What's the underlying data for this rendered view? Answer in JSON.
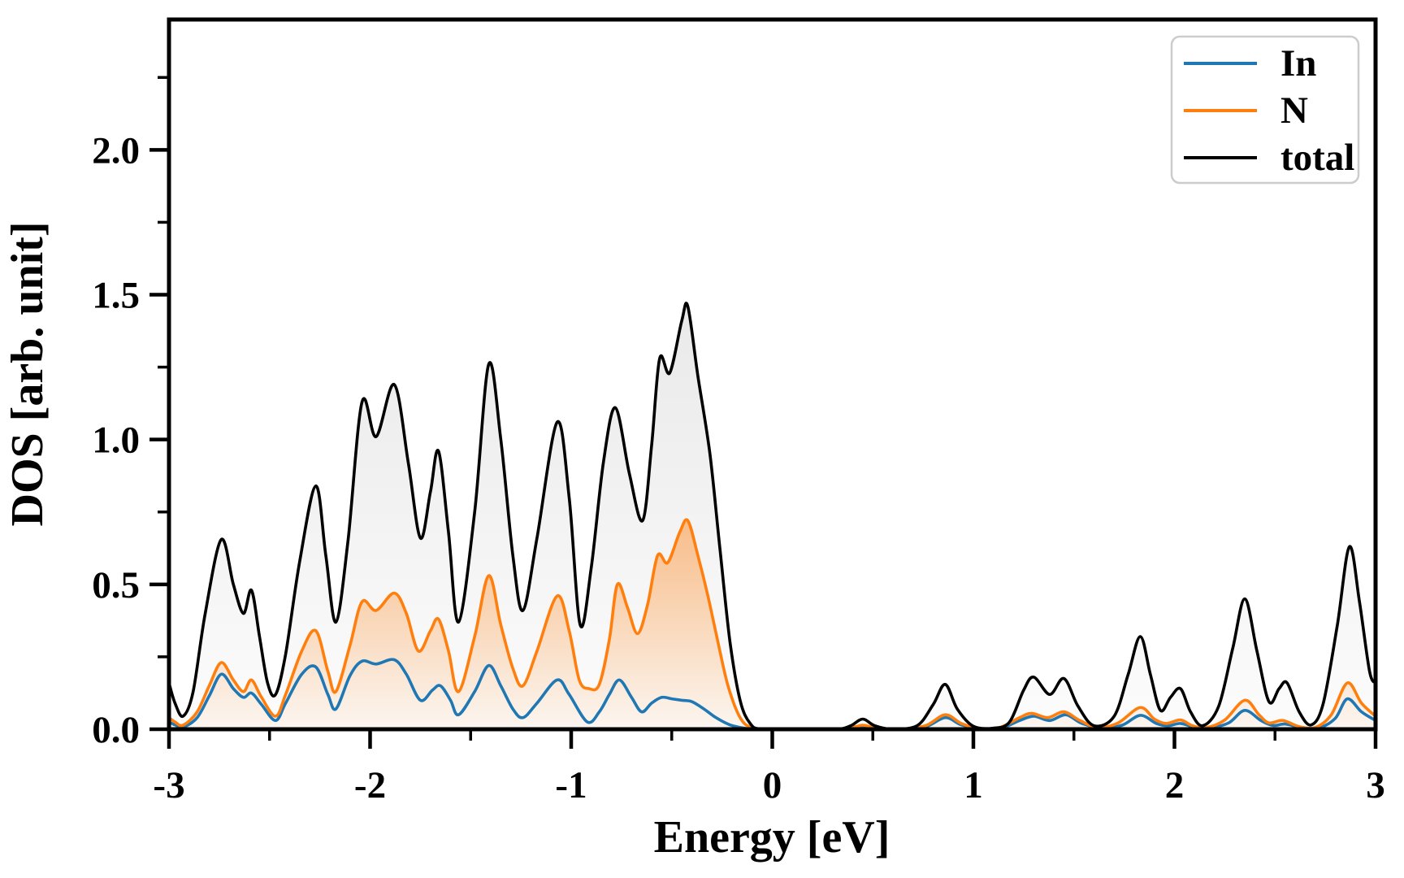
{
  "figure": {
    "background": "#ffffff"
  },
  "chart_data": {
    "type": "line",
    "title": "",
    "xlabel": "Energy [eV]",
    "ylabel": "DOS [arb. unit]",
    "xlim": [
      -3,
      3
    ],
    "ylim": [
      0,
      2.45
    ],
    "grid": false,
    "legend_position": "upper right",
    "x_ticks": [
      {
        "v": -3,
        "label": "-3"
      },
      {
        "v": -2,
        "label": "-2"
      },
      {
        "v": -1,
        "label": "-1"
      },
      {
        "v": 0,
        "label": "0"
      },
      {
        "v": 1,
        "label": "1"
      },
      {
        "v": 2,
        "label": "2"
      },
      {
        "v": 3,
        "label": "3"
      }
    ],
    "x_minor_ticks": [
      -2.5,
      -1.5,
      -0.5,
      0.5,
      1.5,
      2.5
    ],
    "y_ticks": [
      {
        "v": 0,
        "label": "0.0"
      },
      {
        "v": 0.5,
        "label": "0.5"
      },
      {
        "v": 1,
        "label": "1.0"
      },
      {
        "v": 1.5,
        "label": "1.5"
      },
      {
        "v": 2,
        "label": "2.0"
      }
    ],
    "y_minor_ticks": [
      0.25,
      0.75,
      1.25,
      1.75,
      2.25
    ],
    "series": [
      {
        "name": "In",
        "color": "#1f77b4",
        "fill": null,
        "points": [
          [
            -3,
            0.025
          ],
          [
            -2.97,
            0.015
          ],
          [
            -2.93,
            0.007
          ],
          [
            -2.86,
            0.04
          ],
          [
            -2.8,
            0.115
          ],
          [
            -2.74,
            0.19
          ],
          [
            -2.68,
            0.14
          ],
          [
            -2.63,
            0.11
          ],
          [
            -2.59,
            0.125
          ],
          [
            -2.54,
            0.085
          ],
          [
            -2.47,
            0.03
          ],
          [
            -2.42,
            0.09
          ],
          [
            -2.34,
            0.19
          ],
          [
            -2.27,
            0.215
          ],
          [
            -2.21,
            0.12
          ],
          [
            -2.17,
            0.07
          ],
          [
            -2.1,
            0.185
          ],
          [
            -2.04,
            0.235
          ],
          [
            -1.97,
            0.225
          ],
          [
            -1.88,
            0.24
          ],
          [
            -1.82,
            0.19
          ],
          [
            -1.75,
            0.1
          ],
          [
            -1.69,
            0.135
          ],
          [
            -1.65,
            0.15
          ],
          [
            -1.6,
            0.1
          ],
          [
            -1.56,
            0.05
          ],
          [
            -1.48,
            0.13
          ],
          [
            -1.41,
            0.22
          ],
          [
            -1.35,
            0.15
          ],
          [
            -1.29,
            0.07
          ],
          [
            -1.24,
            0.04
          ],
          [
            -1.17,
            0.09
          ],
          [
            -1.07,
            0.17
          ],
          [
            -1.01,
            0.12
          ],
          [
            -0.92,
            0.025
          ],
          [
            -0.86,
            0.06
          ],
          [
            -0.81,
            0.12
          ],
          [
            -0.76,
            0.17
          ],
          [
            -0.7,
            0.11
          ],
          [
            -0.65,
            0.06
          ],
          [
            -0.6,
            0.09
          ],
          [
            -0.55,
            0.11
          ],
          [
            -0.5,
            0.105
          ],
          [
            -0.45,
            0.1
          ],
          [
            -0.4,
            0.095
          ],
          [
            -0.34,
            0.07
          ],
          [
            -0.28,
            0.04
          ],
          [
            -0.21,
            0.015
          ],
          [
            -0.14,
            0.004
          ],
          [
            -0.06,
            0
          ],
          [
            0.32,
            0
          ],
          [
            0.41,
            0.008
          ],
          [
            0.47,
            0.004
          ],
          [
            0.62,
            0
          ],
          [
            0.76,
            0.008
          ],
          [
            0.86,
            0.04
          ],
          [
            0.94,
            0.015
          ],
          [
            1.04,
            0.002
          ],
          [
            1.14,
            0.004
          ],
          [
            1.23,
            0.03
          ],
          [
            1.3,
            0.045
          ],
          [
            1.38,
            0.03
          ],
          [
            1.46,
            0.05
          ],
          [
            1.54,
            0.02
          ],
          [
            1.64,
            0.005
          ],
          [
            1.74,
            0.014
          ],
          [
            1.83,
            0.048
          ],
          [
            1.91,
            0.02
          ],
          [
            1.97,
            0.012
          ],
          [
            2.03,
            0.02
          ],
          [
            2.1,
            0.007
          ],
          [
            2.18,
            0.005
          ],
          [
            2.27,
            0.022
          ],
          [
            2.35,
            0.065
          ],
          [
            2.43,
            0.03
          ],
          [
            2.49,
            0.013
          ],
          [
            2.55,
            0.018
          ],
          [
            2.63,
            0.006
          ],
          [
            2.72,
            0.005
          ],
          [
            2.8,
            0.038
          ],
          [
            2.86,
            0.105
          ],
          [
            2.93,
            0.06
          ],
          [
            3,
            0.03
          ]
        ]
      },
      {
        "name": "N",
        "color": "#ff7f0e",
        "fill": {
          "top_opacity": 0.46,
          "bottom_opacity": 0.05
        },
        "points": [
          [
            -3,
            0.04
          ],
          [
            -2.97,
            0.025
          ],
          [
            -2.93,
            0.014
          ],
          [
            -2.86,
            0.06
          ],
          [
            -2.8,
            0.15
          ],
          [
            -2.74,
            0.23
          ],
          [
            -2.68,
            0.17
          ],
          [
            -2.63,
            0.13
          ],
          [
            -2.59,
            0.17
          ],
          [
            -2.54,
            0.11
          ],
          [
            -2.47,
            0.045
          ],
          [
            -2.42,
            0.12
          ],
          [
            -2.34,
            0.27
          ],
          [
            -2.27,
            0.34
          ],
          [
            -2.21,
            0.2
          ],
          [
            -2.17,
            0.13
          ],
          [
            -2.1,
            0.29
          ],
          [
            -2.04,
            0.44
          ],
          [
            -1.97,
            0.41
          ],
          [
            -1.88,
            0.47
          ],
          [
            -1.82,
            0.4
          ],
          [
            -1.76,
            0.27
          ],
          [
            -1.7,
            0.34
          ],
          [
            -1.66,
            0.38
          ],
          [
            -1.61,
            0.27
          ],
          [
            -1.56,
            0.13
          ],
          [
            -1.48,
            0.32
          ],
          [
            -1.41,
            0.53
          ],
          [
            -1.35,
            0.36
          ],
          [
            -1.29,
            0.21
          ],
          [
            -1.24,
            0.15
          ],
          [
            -1.17,
            0.27
          ],
          [
            -1.07,
            0.46
          ],
          [
            -1.01,
            0.34
          ],
          [
            -0.96,
            0.17
          ],
          [
            -0.91,
            0.14
          ],
          [
            -0.86,
            0.155
          ],
          [
            -0.81,
            0.31
          ],
          [
            -0.77,
            0.5
          ],
          [
            -0.72,
            0.42
          ],
          [
            -0.67,
            0.33
          ],
          [
            -0.62,
            0.43
          ],
          [
            -0.57,
            0.6
          ],
          [
            -0.52,
            0.575
          ],
          [
            -0.46,
            0.68
          ],
          [
            -0.42,
            0.72
          ],
          [
            -0.37,
            0.6
          ],
          [
            -0.32,
            0.46
          ],
          [
            -0.27,
            0.3
          ],
          [
            -0.22,
            0.15
          ],
          [
            -0.16,
            0.04
          ],
          [
            -0.1,
            0.005
          ],
          [
            0,
            0
          ],
          [
            0.32,
            0
          ],
          [
            0.4,
            0.006
          ],
          [
            0.45,
            0.014
          ],
          [
            0.51,
            0.006
          ],
          [
            0.62,
            0
          ],
          [
            0.76,
            0.012
          ],
          [
            0.86,
            0.05
          ],
          [
            0.94,
            0.02
          ],
          [
            1.03,
            0.003
          ],
          [
            1.13,
            0.006
          ],
          [
            1.23,
            0.04
          ],
          [
            1.29,
            0.055
          ],
          [
            1.37,
            0.04
          ],
          [
            1.45,
            0.06
          ],
          [
            1.53,
            0.03
          ],
          [
            1.62,
            0.006
          ],
          [
            1.72,
            0.022
          ],
          [
            1.83,
            0.075
          ],
          [
            1.9,
            0.035
          ],
          [
            1.96,
            0.02
          ],
          [
            2.03,
            0.032
          ],
          [
            2.09,
            0.012
          ],
          [
            2.16,
            0.006
          ],
          [
            2.25,
            0.032
          ],
          [
            2.35,
            0.1
          ],
          [
            2.42,
            0.05
          ],
          [
            2.47,
            0.022
          ],
          [
            2.54,
            0.03
          ],
          [
            2.62,
            0.009
          ],
          [
            2.7,
            0.006
          ],
          [
            2.78,
            0.05
          ],
          [
            2.86,
            0.16
          ],
          [
            2.93,
            0.09
          ],
          [
            3,
            0.045
          ]
        ]
      },
      {
        "name": "total",
        "color": "#000000",
        "fill": {
          "top_opacity": 0.085,
          "bottom_opacity": 0.012
        },
        "points": [
          [
            -3,
            0.16
          ],
          [
            -2.97,
            0.09
          ],
          [
            -2.93,
            0.045
          ],
          [
            -2.88,
            0.13
          ],
          [
            -2.82,
            0.4
          ],
          [
            -2.74,
            0.655
          ],
          [
            -2.68,
            0.5
          ],
          [
            -2.63,
            0.4
          ],
          [
            -2.59,
            0.48
          ],
          [
            -2.55,
            0.32
          ],
          [
            -2.51,
            0.16
          ],
          [
            -2.47,
            0.12
          ],
          [
            -2.42,
            0.26
          ],
          [
            -2.35,
            0.58
          ],
          [
            -2.27,
            0.84
          ],
          [
            -2.22,
            0.6
          ],
          [
            -2.17,
            0.37
          ],
          [
            -2.11,
            0.65
          ],
          [
            -2.04,
            1.13
          ],
          [
            -1.97,
            1.01
          ],
          [
            -1.88,
            1.19
          ],
          [
            -1.81,
            0.92
          ],
          [
            -1.75,
            0.66
          ],
          [
            -1.7,
            0.82
          ],
          [
            -1.66,
            0.96
          ],
          [
            -1.61,
            0.68
          ],
          [
            -1.56,
            0.37
          ],
          [
            -1.48,
            0.75
          ],
          [
            -1.41,
            1.26
          ],
          [
            -1.35,
            1.0
          ],
          [
            -1.29,
            0.6
          ],
          [
            -1.24,
            0.41
          ],
          [
            -1.17,
            0.66
          ],
          [
            -1.07,
            1.06
          ],
          [
            -1.01,
            0.8
          ],
          [
            -0.955,
            0.36
          ],
          [
            -0.9,
            0.56
          ],
          [
            -0.84,
            0.92
          ],
          [
            -0.78,
            1.11
          ],
          [
            -0.71,
            0.88
          ],
          [
            -0.645,
            0.72
          ],
          [
            -0.6,
            0.98
          ],
          [
            -0.56,
            1.28
          ],
          [
            -0.51,
            1.23
          ],
          [
            -0.45,
            1.41
          ],
          [
            -0.42,
            1.46
          ],
          [
            -0.37,
            1.22
          ],
          [
            -0.31,
            0.95
          ],
          [
            -0.26,
            0.62
          ],
          [
            -0.21,
            0.3
          ],
          [
            -0.16,
            0.1
          ],
          [
            -0.11,
            0.02
          ],
          [
            -0.05,
            0
          ],
          [
            0.15,
            0
          ],
          [
            0.32,
            0
          ],
          [
            0.39,
            0.012
          ],
          [
            0.45,
            0.035
          ],
          [
            0.51,
            0.012
          ],
          [
            0.6,
            0
          ],
          [
            0.72,
            0.012
          ],
          [
            0.8,
            0.085
          ],
          [
            0.86,
            0.155
          ],
          [
            0.92,
            0.07
          ],
          [
            1.0,
            0.01
          ],
          [
            1.1,
            0.004
          ],
          [
            1.18,
            0.025
          ],
          [
            1.25,
            0.135
          ],
          [
            1.3,
            0.18
          ],
          [
            1.38,
            0.12
          ],
          [
            1.45,
            0.175
          ],
          [
            1.52,
            0.08
          ],
          [
            1.6,
            0.012
          ],
          [
            1.7,
            0.045
          ],
          [
            1.77,
            0.19
          ],
          [
            1.83,
            0.32
          ],
          [
            1.88,
            0.19
          ],
          [
            1.93,
            0.065
          ],
          [
            1.98,
            0.11
          ],
          [
            2.03,
            0.14
          ],
          [
            2.08,
            0.06
          ],
          [
            2.14,
            0.012
          ],
          [
            2.22,
            0.08
          ],
          [
            2.29,
            0.28
          ],
          [
            2.35,
            0.45
          ],
          [
            2.41,
            0.27
          ],
          [
            2.47,
            0.095
          ],
          [
            2.52,
            0.14
          ],
          [
            2.56,
            0.16
          ],
          [
            2.62,
            0.06
          ],
          [
            2.68,
            0.015
          ],
          [
            2.74,
            0.09
          ],
          [
            2.81,
            0.36
          ],
          [
            2.87,
            0.63
          ],
          [
            2.92,
            0.44
          ],
          [
            2.97,
            0.2
          ],
          [
            3,
            0.16
          ]
        ]
      }
    ]
  }
}
